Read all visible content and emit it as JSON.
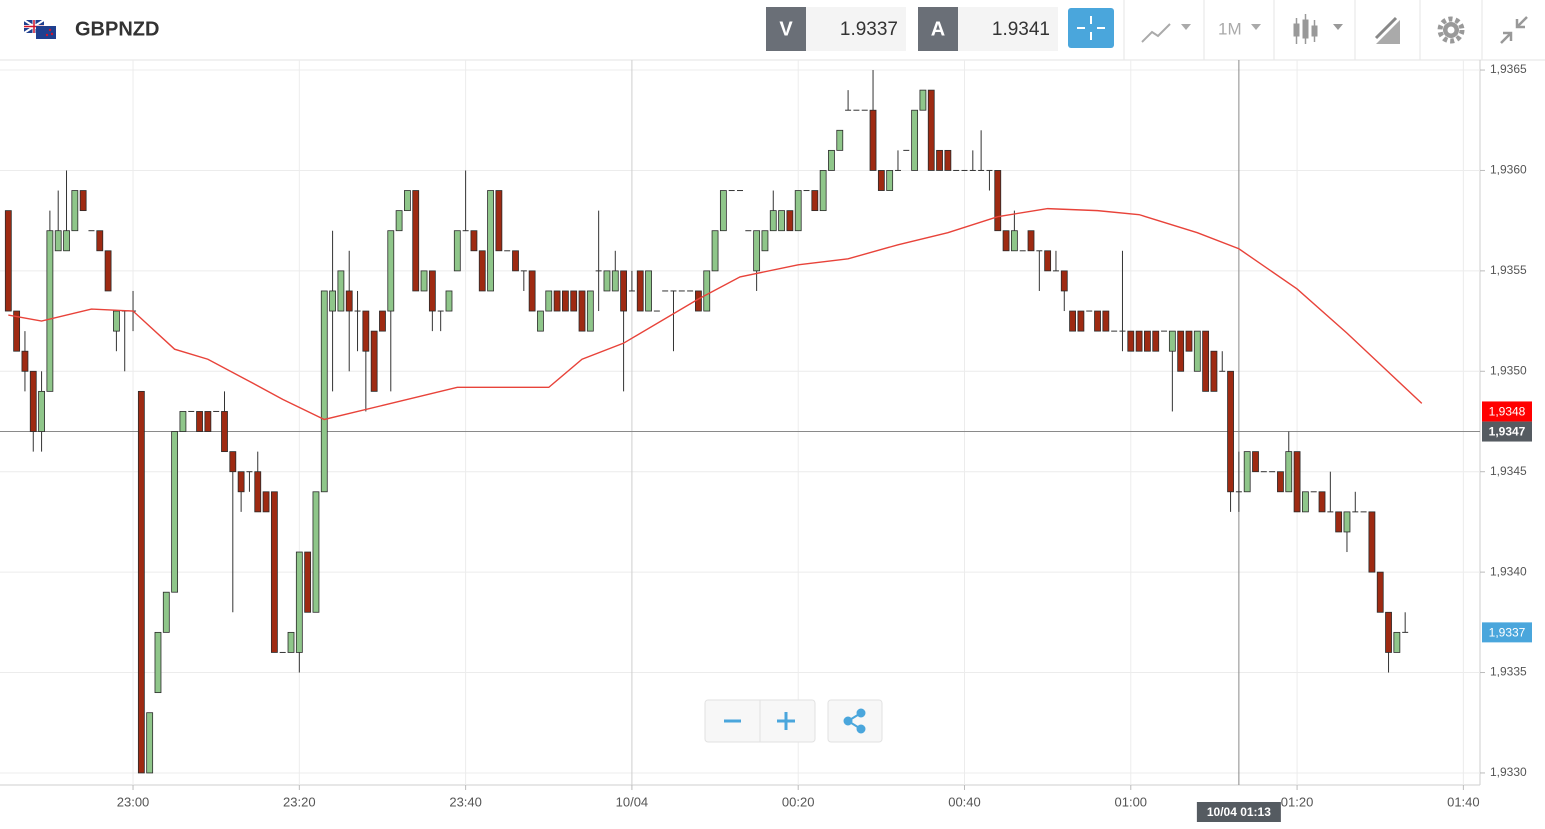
{
  "header": {
    "symbol": "GBPNZD",
    "bid_label": "V",
    "bid": "1.9337",
    "ask_label": "A",
    "ask": "1.9341",
    "timeframe": "1M"
  },
  "chart_data": {
    "type": "candlestick",
    "x": [
      -75,
      -74,
      -73,
      -72,
      -71,
      -70,
      -69,
      -68,
      -67,
      -66,
      -65,
      -64,
      -63,
      -62,
      -61,
      -60,
      -59,
      -58,
      -57,
      -56,
      -55,
      -54,
      -53,
      -52,
      -51,
      -50,
      -49,
      -48,
      -47,
      -46,
      -45,
      -44,
      -43,
      -42,
      -41,
      -40,
      -39,
      -38,
      -37,
      -36,
      -35,
      -34,
      -33,
      -32,
      -31,
      -30,
      -29,
      -28,
      -27,
      -26,
      -25,
      -24,
      -23,
      -22,
      -21,
      -20,
      -19,
      -18,
      -17,
      -16,
      -15,
      -14,
      -13,
      -12,
      -11,
      -10,
      -9,
      -8,
      -7,
      -6,
      -5,
      -4,
      -3,
      -2,
      -1,
      0,
      1,
      2,
      3,
      4,
      5,
      6,
      7,
      8,
      9,
      10,
      11,
      12,
      13,
      14,
      15,
      16,
      17,
      18,
      19,
      20,
      21,
      22,
      23,
      24,
      25,
      26,
      27,
      28,
      29,
      30,
      31,
      32,
      33,
      34,
      35,
      36,
      37,
      38,
      39,
      40,
      41,
      42,
      43,
      44,
      45,
      46,
      47,
      48,
      49,
      50,
      51,
      52,
      53,
      54,
      55,
      56,
      57,
      58,
      59,
      60,
      61,
      62,
      63,
      64,
      65,
      66,
      67,
      68,
      69,
      70,
      71,
      72,
      73,
      74,
      75,
      76,
      77,
      78,
      79,
      80,
      81,
      82,
      83,
      84,
      85,
      86,
      87,
      88,
      89,
      90,
      91,
      92,
      93
    ],
    "open": [
      1.9358,
      1.9353,
      1.9351,
      1.935,
      1.9347,
      1.9349,
      1.9356,
      1.9356,
      1.9357,
      1.9359,
      1.9357,
      1.9357,
      1.9356,
      1.9352,
      1.9353,
      1.9353,
      1.9349,
      1.933,
      1.9334,
      1.9337,
      1.9339,
      1.9347,
      1.9348,
      1.9348,
      1.9348,
      1.9348,
      1.9348,
      1.9346,
      1.9345,
      1.9345,
      1.9345,
      1.9344,
      1.9344,
      1.9336,
      1.9336,
      1.9336,
      1.9341,
      1.9338,
      1.9344,
      1.9353,
      1.9353,
      1.9354,
      1.9353,
      1.9353,
      1.9352,
      1.9353,
      1.9353,
      1.9357,
      1.9358,
      1.9359,
      1.9354,
      1.9355,
      1.9353,
      1.9353,
      1.9355,
      1.9357,
      1.9357,
      1.9356,
      1.9354,
      1.9359,
      1.9356,
      1.9356,
      1.9355,
      1.9355,
      1.9352,
      1.9353,
      1.9354,
      1.9354,
      1.9354,
      1.9354,
      1.9352,
      1.9355,
      1.9354,
      1.9354,
      1.9355,
      1.9354,
      1.9355,
      1.9353,
      1.9353,
      1.9354,
      1.9354,
      1.9354,
      1.9354,
      1.9354,
      1.9353,
      1.9355,
      1.9357,
      1.9359,
      1.9359,
      1.9357,
      1.9355,
      1.9356,
      1.9357,
      1.9357,
      1.9358,
      1.9357,
      1.9359,
      1.9359,
      1.9358,
      1.936,
      1.9361,
      1.9363,
      1.9363,
      1.9363,
      1.9363,
      1.936,
      1.9359,
      1.936,
      1.9361,
      1.936,
      1.9363,
      1.9364,
      1.9361,
      1.9361,
      1.936,
      1.936,
      1.936,
      1.936,
      1.936,
      1.936,
      1.9357,
      1.9356,
      1.9356,
      1.9357,
      1.9356,
      1.9356,
      1.9355,
      1.9355,
      1.9353,
      1.9353,
      1.9353,
      1.9353,
      1.9353,
      1.9352,
      1.9352,
      1.9352,
      1.9352,
      1.9352,
      1.9352,
      1.9352,
      1.9351,
      1.9352,
      1.9352,
      1.935,
      1.9352,
      1.9351,
      1.935,
      1.935,
      1.9344,
      1.9344,
      1.9346,
      1.9345,
      1.9345,
      1.9345,
      1.9344,
      1.9346,
      1.9343,
      1.9344,
      1.9344,
      1.9343,
      1.9343,
      1.9342,
      1.9343,
      1.9343,
      1.9343,
      1.934,
      1.9338,
      1.9336,
      1.9337
    ],
    "high": [
      1.9358,
      1.9353,
      1.9352,
      1.935,
      1.935,
      1.9358,
      1.9359,
      1.936,
      1.9359,
      1.9359,
      1.9357,
      1.9357,
      1.9356,
      1.9353,
      1.9353,
      1.9354,
      1.9349,
      1.9333,
      1.9337,
      1.9339,
      1.9347,
      1.9348,
      1.9348,
      1.9348,
      1.9348,
      1.9348,
      1.9349,
      1.9346,
      1.9345,
      1.9345,
      1.9346,
      1.9344,
      1.9344,
      1.9336,
      1.9337,
      1.9341,
      1.9341,
      1.9344,
      1.9354,
      1.9357,
      1.9355,
      1.9356,
      1.9354,
      1.9353,
      1.9352,
      1.9353,
      1.9357,
      1.9358,
      1.9359,
      1.9359,
      1.9355,
      1.9355,
      1.9353,
      1.9354,
      1.9357,
      1.936,
      1.9357,
      1.9356,
      1.9359,
      1.9359,
      1.9356,
      1.9356,
      1.9355,
      1.9355,
      1.9353,
      1.9354,
      1.9354,
      1.9354,
      1.9354,
      1.9354,
      1.9354,
      1.9358,
      1.9355,
      1.9356,
      1.9355,
      1.9355,
      1.9355,
      1.9355,
      1.9353,
      1.9354,
      1.9354,
      1.9354,
      1.9354,
      1.9354,
      1.9355,
      1.9357,
      1.9359,
      1.9359,
      1.9359,
      1.9357,
      1.9357,
      1.9357,
      1.9359,
      1.9358,
      1.9358,
      1.9359,
      1.9359,
      1.9359,
      1.936,
      1.9361,
      1.9362,
      1.9364,
      1.9363,
      1.9363,
      1.9365,
      1.936,
      1.936,
      1.9361,
      1.9361,
      1.9363,
      1.9364,
      1.9364,
      1.9361,
      1.9361,
      1.936,
      1.936,
      1.9361,
      1.9362,
      1.936,
      1.936,
      1.9357,
      1.9358,
      1.9356,
      1.9357,
      1.9356,
      1.9356,
      1.9356,
      1.9355,
      1.9353,
      1.9353,
      1.9353,
      1.9353,
      1.9353,
      1.9352,
      1.9356,
      1.9352,
      1.9352,
      1.9352,
      1.9352,
      1.9352,
      1.9352,
      1.9352,
      1.9352,
      1.9352,
      1.9352,
      1.9351,
      1.9351,
      1.935,
      1.9346,
      1.9346,
      1.9346,
      1.9345,
      1.9345,
      1.9345,
      1.9347,
      1.9346,
      1.9344,
      1.9344,
      1.9344,
      1.9345,
      1.9343,
      1.9343,
      1.9344,
      1.9343,
      1.9343,
      1.934,
      1.9338,
      1.9337,
      1.9338
    ],
    "low": [
      1.9353,
      1.9351,
      1.9349,
      1.9346,
      1.9346,
      1.9349,
      1.9356,
      1.9356,
      1.9357,
      1.9358,
      1.9357,
      1.9356,
      1.9354,
      1.9351,
      1.935,
      1.9352,
      1.933,
      1.933,
      1.9334,
      1.9337,
      1.9339,
      1.9347,
      1.9348,
      1.9347,
      1.9347,
      1.9348,
      1.9346,
      1.9338,
      1.9343,
      1.9344,
      1.9343,
      1.9343,
      1.9336,
      1.9336,
      1.9336,
      1.9335,
      1.9338,
      1.9338,
      1.9344,
      1.9349,
      1.9353,
      1.935,
      1.9351,
      1.9348,
      1.9349,
      1.9352,
      1.9349,
      1.9357,
      1.9358,
      1.9354,
      1.9354,
      1.9352,
      1.9352,
      1.9353,
      1.9355,
      1.9357,
      1.9356,
      1.9354,
      1.9354,
      1.9356,
      1.9356,
      1.9355,
      1.9354,
      1.9353,
      1.9352,
      1.9353,
      1.9353,
      1.9353,
      1.9353,
      1.9352,
      1.9352,
      1.9353,
      1.9354,
      1.9354,
      1.9349,
      1.9354,
      1.9353,
      1.9353,
      1.9353,
      1.9354,
      1.9351,
      1.9354,
      1.9354,
      1.9353,
      1.9353,
      1.9355,
      1.9357,
      1.9359,
      1.9359,
      1.9357,
      1.9354,
      1.9356,
      1.9357,
      1.9357,
      1.9357,
      1.9357,
      1.9359,
      1.9358,
      1.9358,
      1.936,
      1.9361,
      1.9363,
      1.9363,
      1.9363,
      1.936,
      1.9359,
      1.9359,
      1.936,
      1.9361,
      1.936,
      1.9363,
      1.936,
      1.936,
      1.936,
      1.936,
      1.936,
      1.936,
      1.936,
      1.9359,
      1.9357,
      1.9356,
      1.9356,
      1.9356,
      1.9356,
      1.9354,
      1.9355,
      1.9355,
      1.9353,
      1.9352,
      1.9352,
      1.9353,
      1.9352,
      1.9352,
      1.9352,
      1.9351,
      1.9351,
      1.9351,
      1.9351,
      1.9351,
      1.9352,
      1.9348,
      1.935,
      1.9351,
      1.935,
      1.9349,
      1.9349,
      1.935,
      1.9343,
      1.9343,
      1.9344,
      1.9345,
      1.9345,
      1.9345,
      1.9344,
      1.9344,
      1.9343,
      1.9343,
      1.9344,
      1.9343,
      1.9343,
      1.9342,
      1.9341,
      1.9343,
      1.9343,
      1.934,
      1.9338,
      1.9335,
      1.9336,
      1.9337
    ],
    "close": [
      1.9353,
      1.9351,
      1.935,
      1.9347,
      1.9349,
      1.9357,
      1.9357,
      1.9357,
      1.9359,
      1.9358,
      1.9357,
      1.9356,
      1.9354,
      1.9353,
      1.9353,
      1.9353,
      1.933,
      1.9333,
      1.9337,
      1.9339,
      1.9347,
      1.9348,
      1.9348,
      1.9347,
      1.9347,
      1.9348,
      1.9346,
      1.9345,
      1.9344,
      1.9345,
      1.9343,
      1.9343,
      1.9336,
      1.9336,
      1.9337,
      1.9341,
      1.9338,
      1.9344,
      1.9354,
      1.9354,
      1.9355,
      1.9353,
      1.9353,
      1.9351,
      1.9349,
      1.9352,
      1.9357,
      1.9358,
      1.9359,
      1.9354,
      1.9355,
      1.9353,
      1.9353,
      1.9354,
      1.9357,
      1.9357,
      1.9356,
      1.9354,
      1.9359,
      1.9356,
      1.9356,
      1.9355,
      1.9355,
      1.9353,
      1.9353,
      1.9354,
      1.9353,
      1.9353,
      1.9353,
      1.9352,
      1.9354,
      1.9355,
      1.9355,
      1.9355,
      1.9353,
      1.9354,
      1.9353,
      1.9355,
      1.9353,
      1.9354,
      1.9354,
      1.9354,
      1.9354,
      1.9353,
      1.9355,
      1.9357,
      1.9359,
      1.9359,
      1.9359,
      1.9357,
      1.9357,
      1.9357,
      1.9358,
      1.9358,
      1.9357,
      1.9359,
      1.9359,
      1.9358,
      1.936,
      1.9361,
      1.9362,
      1.9363,
      1.9363,
      1.9363,
      1.936,
      1.9359,
      1.936,
      1.936,
      1.9361,
      1.9363,
      1.9364,
      1.936,
      1.936,
      1.936,
      1.936,
      1.936,
      1.936,
      1.936,
      1.936,
      1.9357,
      1.9356,
      1.9357,
      1.9356,
      1.9356,
      1.9356,
      1.9355,
      1.9355,
      1.9354,
      1.9352,
      1.9352,
      1.9353,
      1.9352,
      1.9352,
      1.9352,
      1.9352,
      1.9351,
      1.9351,
      1.9351,
      1.9351,
      1.9352,
      1.9352,
      1.935,
      1.9351,
      1.9352,
      1.9349,
      1.9349,
      1.935,
      1.9344,
      1.9344,
      1.9346,
      1.9345,
      1.9345,
      1.9345,
      1.9344,
      1.9346,
      1.9343,
      1.9344,
      1.9344,
      1.9343,
      1.9343,
      1.9342,
      1.9343,
      1.9343,
      1.9343,
      1.934,
      1.9338,
      1.9336,
      1.9337,
      1.9337
    ],
    "up_color": "#8fc68a",
    "down_color": "#9e2a12",
    "wick_color": "#333333",
    "ma_line": {
      "color": "#e8433a",
      "x": [
        -75,
        -71,
        -65,
        -60,
        -55,
        -51,
        -46,
        -42,
        -37,
        -30,
        -21,
        -10,
        -6,
        -1,
        8,
        13,
        20,
        26,
        32,
        38,
        44,
        50,
        56,
        61,
        68,
        73,
        80,
        86,
        95
      ],
      "values": [
        1.93528,
        1.93525,
        1.93531,
        1.9353,
        1.93511,
        1.93506,
        1.93495,
        1.93486,
        1.93476,
        1.93483,
        1.93492,
        1.93492,
        1.93506,
        1.93514,
        1.93536,
        1.93547,
        1.93553,
        1.93556,
        1.93563,
        1.93569,
        1.93577,
        1.93581,
        1.9358,
        1.93578,
        1.93569,
        1.93561,
        1.93541,
        1.93519,
        1.93484
      ]
    },
    "xlim": [
      -76,
      102
    ],
    "xticks": [
      {
        "value": -60,
        "label": "23:00"
      },
      {
        "value": -40,
        "label": "23:20"
      },
      {
        "value": -20,
        "label": "23:40"
      },
      {
        "value": 0,
        "label": "10/04"
      },
      {
        "value": 20,
        "label": "00:20"
      },
      {
        "value": 40,
        "label": "00:40"
      },
      {
        "value": 60,
        "label": "01:00"
      },
      {
        "value": 80,
        "label": "01:20"
      },
      {
        "value": 100,
        "label": "01:40"
      }
    ],
    "ylim": [
      1.93294,
      1.93655
    ],
    "yticks": [
      {
        "value": 1.933,
        "label": "1,9330"
      },
      {
        "value": 1.9335,
        "label": "1,9335"
      },
      {
        "value": 1.934,
        "label": "1,9340"
      },
      {
        "value": 1.9345,
        "label": "1,9345"
      },
      {
        "value": 1.935,
        "label": "1,9350"
      },
      {
        "value": 1.9355,
        "label": "1,9355"
      },
      {
        "value": 1.936,
        "label": "1,9360"
      },
      {
        "value": 1.9365,
        "label": "1,9365"
      }
    ],
    "grid": true,
    "price_markers": [
      {
        "value": 1.9348,
        "label": "1,9348",
        "color": "#ff0000"
      },
      {
        "value": 1.9337,
        "label": "1,9337",
        "color": "#4aa6dc"
      }
    ],
    "crosshair": {
      "x": 73,
      "x_label": "10/04 01:13",
      "y": 1.9347,
      "y_label": "1,9347",
      "color": "#555b61"
    }
  }
}
